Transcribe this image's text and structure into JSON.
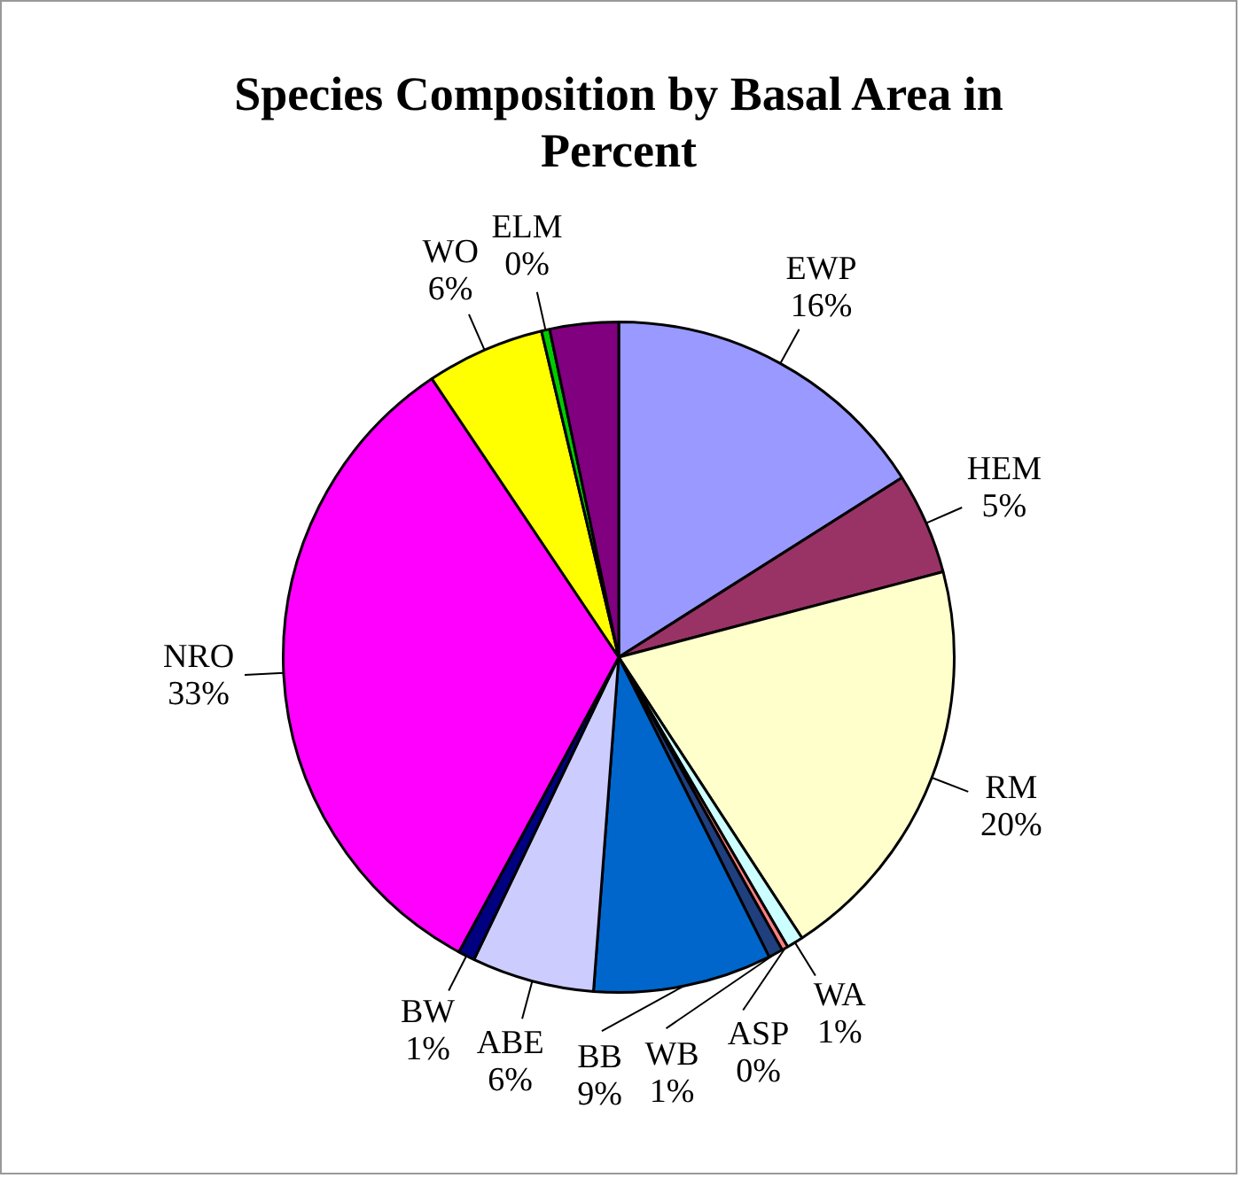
{
  "chart_data": {
    "type": "pie",
    "title": "Species Composition by Basal Area in Percent",
    "categories": [
      "EWP",
      "HEM",
      "RM",
      "WA",
      "ASP",
      "WB",
      "BB",
      "ABE",
      "BW",
      "NRO",
      "WO",
      "ELM",
      null
    ],
    "values": [
      16.0,
      4.9,
      19.9,
      0.8,
      0.3,
      0.7,
      8.6,
      5.9,
      0.8,
      32.7,
      5.7,
      0.4,
      3.3
    ],
    "colors": [
      "#9999ff",
      "#993366",
      "#ffffcc",
      "#ccffff",
      "#ff8080",
      "#1f3f7f",
      "#0066cc",
      "#ccccff",
      "#000080",
      "#ff00ff",
      "#ffff00",
      "#00cc00",
      "#800080"
    ],
    "value_labels": [
      "16%",
      "5%",
      "20%",
      "1%",
      "0%",
      "1%",
      "9%",
      "6%",
      "1%",
      "33%",
      "6%",
      "0%",
      null
    ],
    "legend": false
  }
}
